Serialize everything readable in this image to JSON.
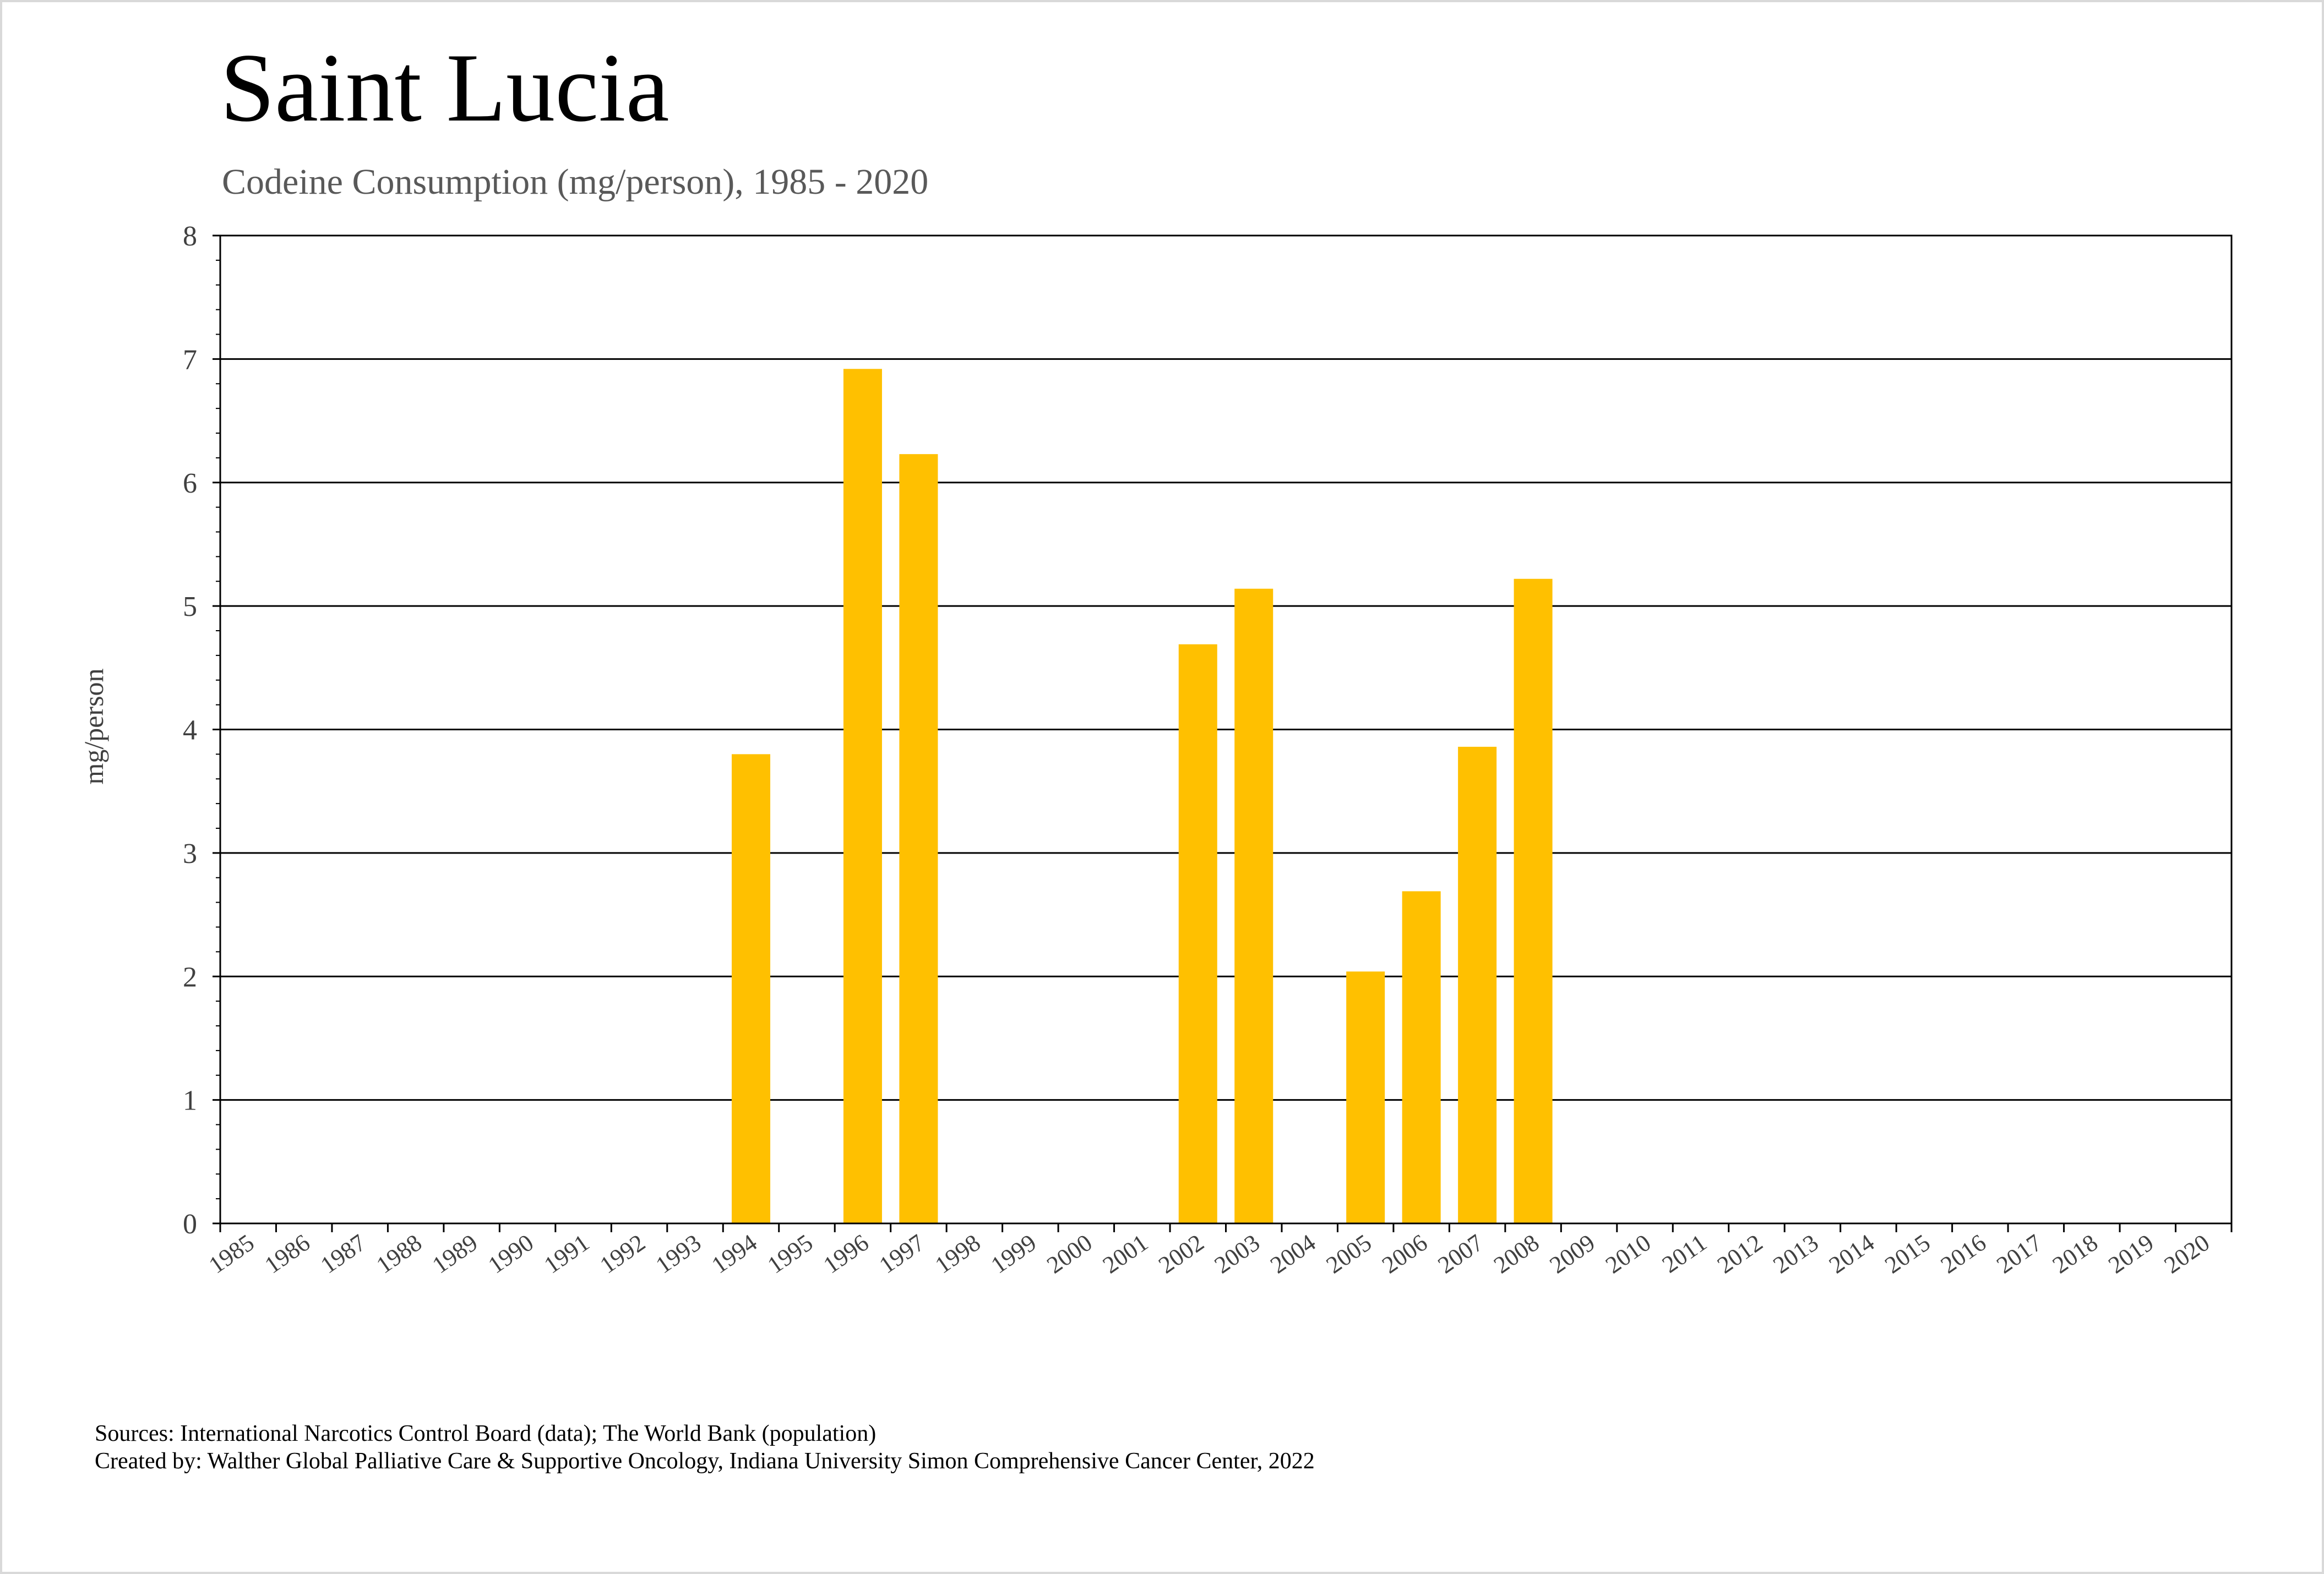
{
  "chart_data": {
    "type": "bar",
    "title": "Saint Lucia",
    "subtitle": "Codeine Consumption (mg/person), 1985 - 2020",
    "xlabel": "",
    "ylabel": "mg/person",
    "ylim": [
      0,
      8
    ],
    "yticks": [
      "0",
      "1",
      "2",
      "3",
      "4",
      "5",
      "6",
      "7",
      "8"
    ],
    "grid": true,
    "bar_color": "#FFC000",
    "categories": [
      "1985",
      "1986",
      "1987",
      "1988",
      "1989",
      "1990",
      "1991",
      "1992",
      "1993",
      "1994",
      "1995",
      "1996",
      "1997",
      "1998",
      "1999",
      "2000",
      "2001",
      "2002",
      "2003",
      "2004",
      "2005",
      "2006",
      "2007",
      "2008",
      "2009",
      "2010",
      "2011",
      "2012",
      "2013",
      "2014",
      "2015",
      "2016",
      "2017",
      "2018",
      "2019",
      "2020"
    ],
    "values": [
      null,
      null,
      null,
      null,
      null,
      null,
      null,
      null,
      null,
      3.8,
      null,
      6.92,
      6.23,
      null,
      null,
      null,
      null,
      4.69,
      5.14,
      null,
      2.04,
      2.69,
      3.86,
      5.22,
      null,
      null,
      null,
      null,
      null,
      null,
      null,
      null,
      null,
      null,
      null,
      null
    ]
  },
  "footer": {
    "sources": "Sources: International Narcotics Control Board (data); The World Bank (population)",
    "created_by": "Created by: Walther Global Palliative Care & Supportive Oncology, Indiana University Simon Comprehensive Cancer Center, 2022"
  }
}
